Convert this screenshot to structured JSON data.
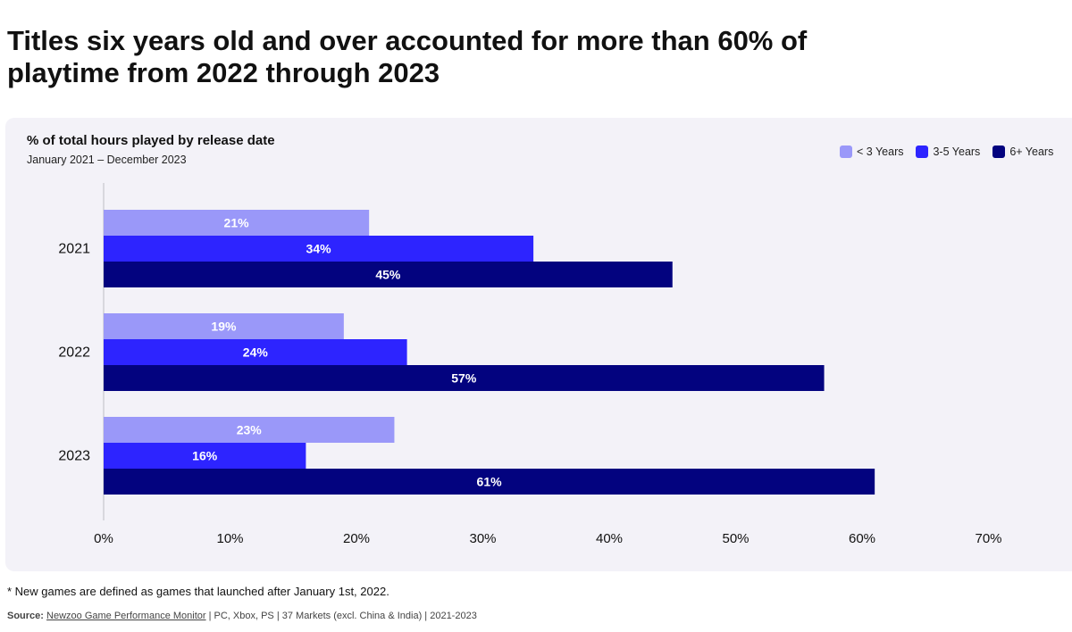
{
  "headline": "Titles six years old and over accounted for more than 60% of playtime from 2022 through 2023",
  "footnote": "* New games are defined as games that launched after January 1st, 2022.",
  "source": {
    "label": "Source:",
    "link_text": "Newzoo Game Performance Monitor",
    "rest": " | PC, Xbox, PS | 37 Markets (excl. China & India) | 2021-2023"
  },
  "colors": {
    "lt3": "#9a98f9",
    "y3to5": "#2d24ff",
    "y6plus": "#03037f",
    "panel": "#f3f2f8"
  },
  "chart_data": {
    "type": "bar",
    "orientation": "horizontal",
    "title": "% of total hours played by release date",
    "subtitle": "January 2021 – December 2023",
    "categories": [
      "2021",
      "2022",
      "2023"
    ],
    "series": [
      {
        "name": "< 3 Years",
        "values": [
          21,
          19,
          23
        ],
        "color": "#9a98f9"
      },
      {
        "name": "3-5 Years",
        "values": [
          34,
          24,
          16
        ],
        "color": "#2d24ff"
      },
      {
        "name": "6+ Years",
        "values": [
          45,
          57,
          61
        ],
        "color": "#03037f"
      }
    ],
    "value_labels": [
      [
        "21%",
        "19%",
        "23%"
      ],
      [
        "34%",
        "24%",
        "16%"
      ],
      [
        "45%",
        "57%",
        "61%"
      ]
    ],
    "xlim": [
      0,
      70
    ],
    "xticks": [
      0,
      10,
      20,
      30,
      40,
      50,
      60,
      70
    ],
    "xtick_labels": [
      "0%",
      "10%",
      "20%",
      "30%",
      "40%",
      "50%",
      "60%",
      "70%"
    ],
    "xlabel": "",
    "ylabel": "",
    "grid": false,
    "legend_position": "top-right"
  }
}
